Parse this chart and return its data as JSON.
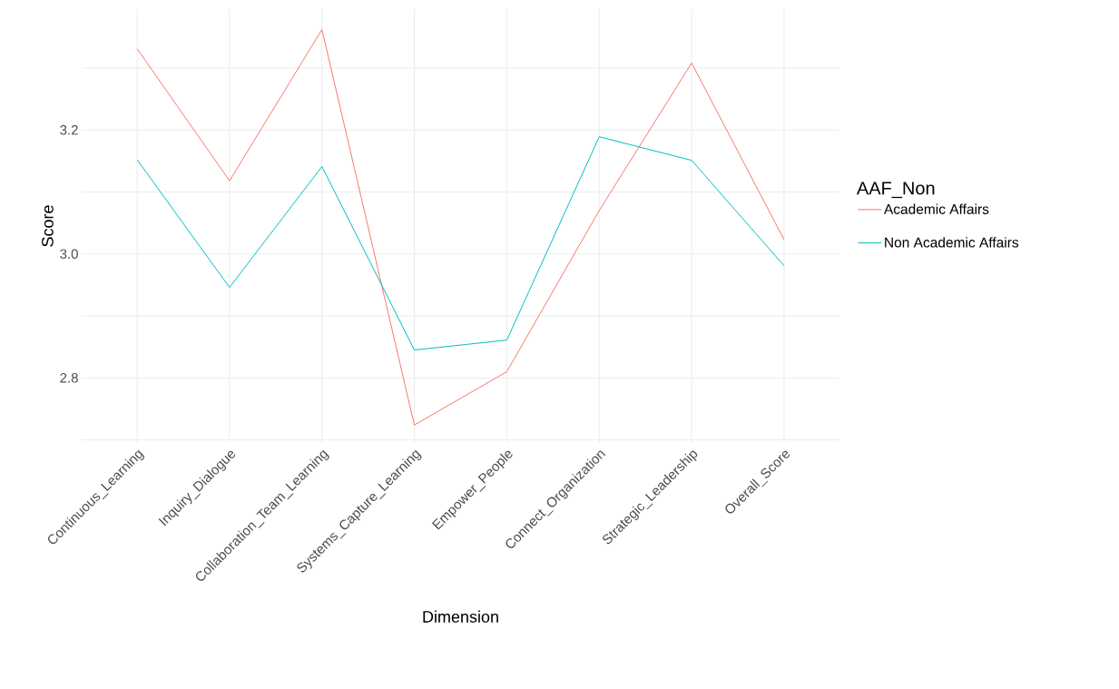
{
  "chart_data": {
    "type": "line",
    "xlabel": "Dimension",
    "ylabel": "Score",
    "legend_title": "AAF_Non",
    "categories": [
      "Continuous_Learning",
      "Inquiry_Dialogue",
      "Collaboration_Team_Learning",
      "Systems_Capture_Learning",
      "Empower_People",
      "Connect_Organization",
      "Strategic_Leadership",
      "Overall_Score"
    ],
    "series": [
      {
        "name": "Academic Affairs",
        "color": "#f8766d",
        "values": [
          3.331,
          3.118,
          3.362,
          2.724,
          2.81,
          3.07,
          3.308,
          3.023
        ]
      },
      {
        "name": "Non Academic Affairs",
        "color": "#00bfc4",
        "values": [
          3.152,
          2.946,
          3.141,
          2.845,
          2.861,
          3.189,
          3.151,
          2.981
        ]
      }
    ],
    "ylim": [
      2.695,
      3.395
    ],
    "yticks": [
      {
        "value": 2.7,
        "label": null
      },
      2.8,
      {
        "value": 2.9,
        "label": null
      },
      {
        "value": 3.0,
        "label": "3.0"
      },
      {
        "value": 3.1,
        "label": null
      },
      3.2,
      {
        "value": 3.3,
        "label": null
      }
    ],
    "grid": true,
    "legend": "right",
    "marker": "none",
    "line_style": "solid"
  }
}
